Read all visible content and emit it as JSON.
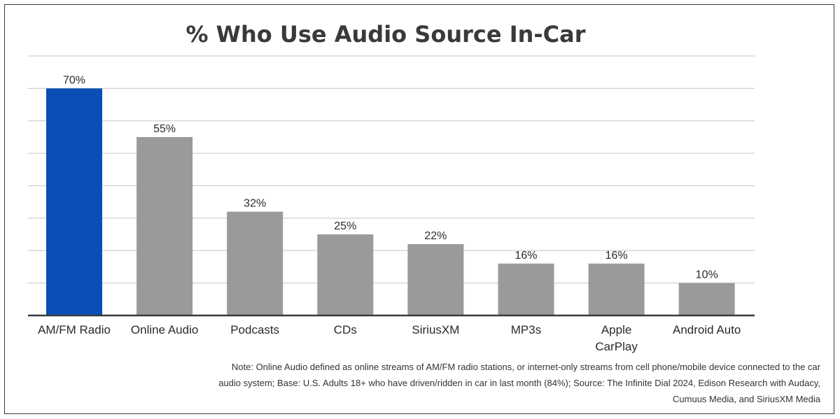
{
  "chart_data": {
    "type": "bar",
    "title": "% Who Use Audio Source In-Car",
    "categories": [
      "AM/FM Radio",
      "Online Audio",
      "Podcasts",
      "CDs",
      "SiriusXM",
      "MP3s",
      "Apple CarPlay",
      "Android Auto"
    ],
    "values": [
      70,
      55,
      32,
      25,
      22,
      16,
      16,
      10
    ],
    "data_labels": [
      "70%",
      "55%",
      "32%",
      "25%",
      "22%",
      "16%",
      "16%",
      "10%"
    ],
    "ylim": [
      0,
      80
    ],
    "grid": true,
    "y_axis_visible": false,
    "legend": "none",
    "colors": {
      "highlight": "#0a4fb5",
      "bar": "#9a9a9a",
      "grid": "#cfcfcf",
      "axis": "#3a3a3a",
      "title": "#3a3a3a",
      "text": "#2a2a2a"
    },
    "highlight_index": 0
  },
  "note": {
    "lines": [
      "Note: Online Audio defined as online streams of AM/FM radio stations, or internet-only streams from cell phone/mobile device connected to the car",
      "audio system; Base: U.S. Adults 18+ who have driven/ridden in car in last month (84%);  Source: The Infinite Dial 2024, Edison Research with Audacy,",
      "Cumuus Media, and SiriusXM Media"
    ]
  }
}
